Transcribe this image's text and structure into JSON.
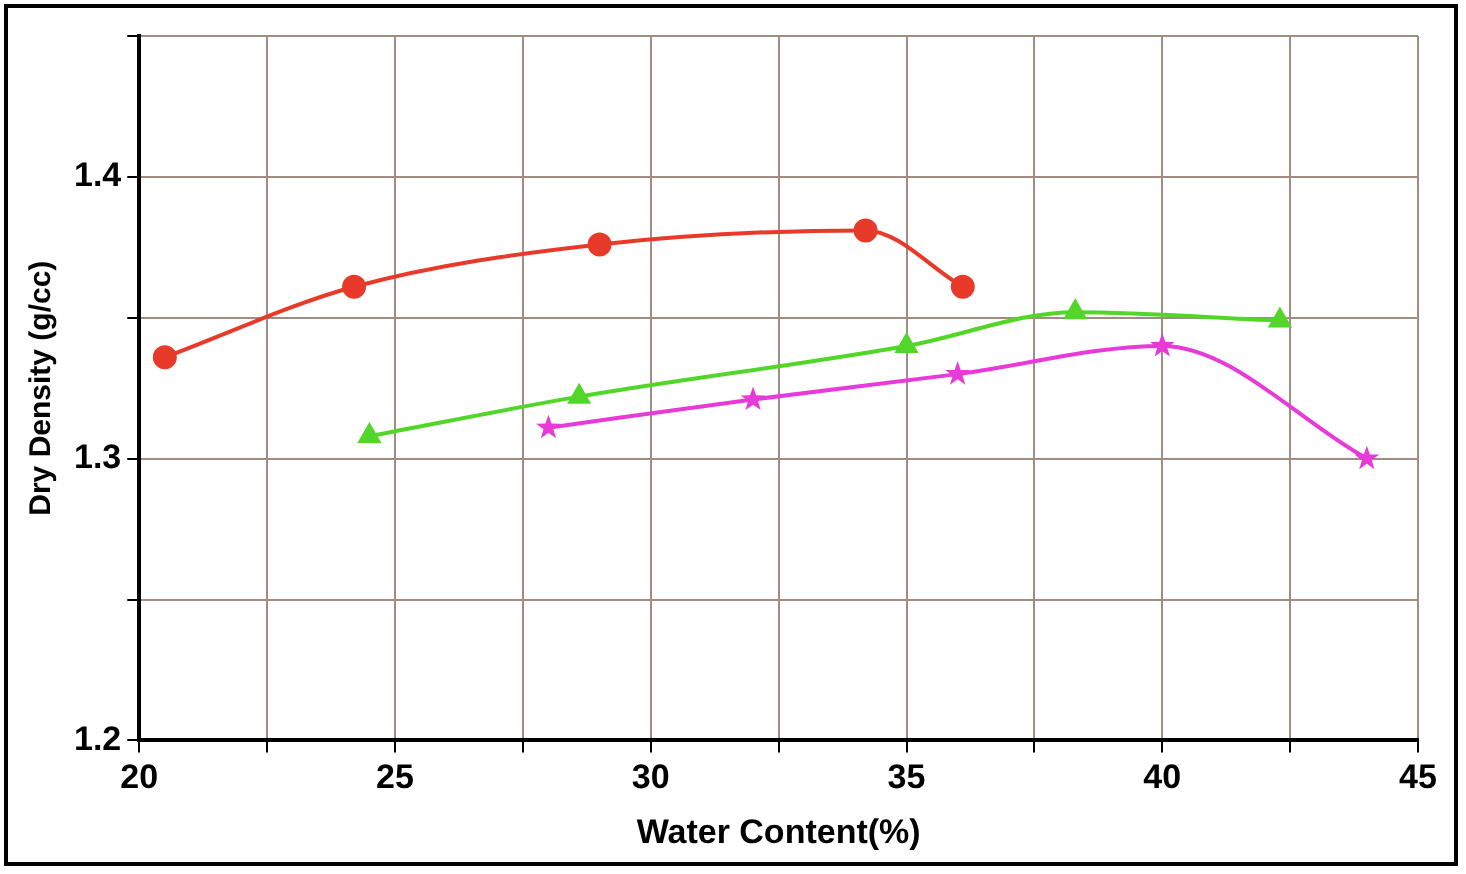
{
  "chart_data": {
    "type": "line",
    "xlabel": "Water Content(%)",
    "ylabel": "Dry Density (g/cc)",
    "xlim": [
      20,
      45
    ],
    "xticks": [
      20,
      {
        "value": 22.5,
        "label": null
      },
      25,
      {
        "value": 27.5,
        "label": null
      },
      30,
      {
        "value": 32.5,
        "label": null
      },
      35,
      {
        "value": 37.5,
        "label": null
      },
      40,
      {
        "value": 42.5,
        "label": null
      },
      45
    ],
    "ylim": [
      1.2,
      1.45
    ],
    "yticks": [
      1.2,
      {
        "value": 1.25,
        "label": null
      },
      1.3,
      {
        "value": 1.35,
        "label": null
      },
      1.4,
      {
        "value": 1.45,
        "label": null
      }
    ],
    "grid": true,
    "legend": false,
    "series": [
      {
        "color": "#e83a2a",
        "marker": "circle",
        "x": [
          20.5,
          24.2,
          29.0,
          34.2,
          36.1
        ],
        "values": [
          1.336,
          1.361,
          1.376,
          1.381,
          1.361
        ]
      },
      {
        "color": "#52d62a",
        "marker": "triangle",
        "x": [
          24.5,
          28.6,
          35.0,
          38.3,
          42.3
        ],
        "values": [
          1.308,
          1.322,
          1.34,
          1.352,
          1.349
        ]
      },
      {
        "color": "#e83ad8",
        "marker": "star",
        "x": [
          28.0,
          32.0,
          36.0,
          40.0,
          44.0
        ],
        "values": [
          1.311,
          1.321,
          1.33,
          1.34,
          1.3
        ]
      }
    ]
  }
}
